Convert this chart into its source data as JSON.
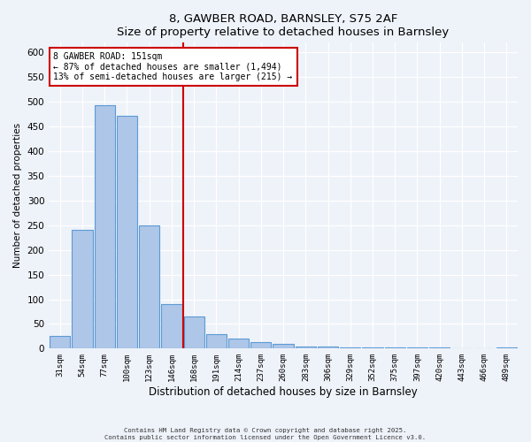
{
  "title": "8, GAWBER ROAD, BARNSLEY, S75 2AF",
  "subtitle": "Size of property relative to detached houses in Barnsley",
  "xlabel": "Distribution of detached houses by size in Barnsley",
  "ylabel": "Number of detached properties",
  "bar_labels": [
    "31sqm",
    "54sqm",
    "77sqm",
    "100sqm",
    "123sqm",
    "146sqm",
    "168sqm",
    "191sqm",
    "214sqm",
    "237sqm",
    "260sqm",
    "283sqm",
    "306sqm",
    "329sqm",
    "352sqm",
    "375sqm",
    "397sqm",
    "420sqm",
    "443sqm",
    "466sqm",
    "489sqm"
  ],
  "bar_values": [
    25,
    240,
    493,
    472,
    250,
    90,
    65,
    30,
    20,
    14,
    10,
    5,
    4,
    3,
    2,
    2,
    3,
    2,
    1,
    1,
    2
  ],
  "bar_color": "#aec6e8",
  "bar_edge_color": "#5b9bd5",
  "ylim": [
    0,
    620
  ],
  "yticks": [
    0,
    50,
    100,
    150,
    200,
    250,
    300,
    350,
    400,
    450,
    500,
    550,
    600
  ],
  "vline_x": 5.5,
  "vline_color": "#cc0000",
  "annotation_title": "8 GAWBER ROAD: 151sqm",
  "annotation_line1": "← 87% of detached houses are smaller (1,494)",
  "annotation_line2": "13% of semi-detached houses are larger (215) →",
  "annotation_box_color": "#ffffff",
  "annotation_box_edge": "#cc0000",
  "bg_color": "#eef2f9",
  "grid_color": "#ffffff",
  "footer1": "Contains HM Land Registry data © Crown copyright and database right 2025.",
  "footer2": "Contains public sector information licensed under the Open Government Licence v3.0."
}
